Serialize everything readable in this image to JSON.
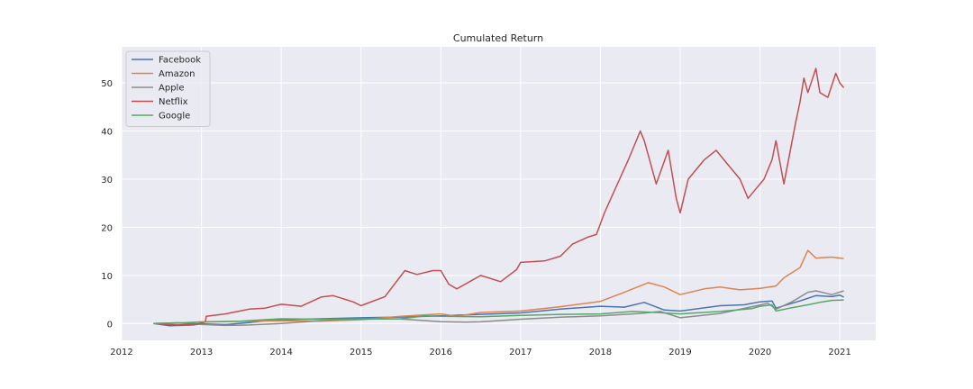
{
  "chart_data": {
    "type": "line",
    "title": "Cumulated Return",
    "xlabel": "",
    "ylabel": "",
    "xlim": [
      2012.0,
      2021.45
    ],
    "ylim": [
      -3.5,
      57.5
    ],
    "x_ticks": [
      "2012",
      "2013",
      "2014",
      "2015",
      "2016",
      "2017",
      "2018",
      "2019",
      "2020",
      "2021"
    ],
    "y_ticks": [
      "0",
      "10",
      "20",
      "30",
      "40",
      "50"
    ],
    "grid": true,
    "legend": "top-left",
    "series": [
      {
        "name": "Facebook",
        "color": "#4c72b0",
        "x": [
          2012.4,
          2012.6,
          2012.75,
          2012.9,
          2013.0,
          2013.3,
          2013.6,
          2013.8,
          2014.0,
          2014.5,
          2015.0,
          2015.5,
          2016.0,
          2016.5,
          2017.0,
          2017.5,
          2018.0,
          2018.3,
          2018.55,
          2018.8,
          2019.0,
          2019.5,
          2019.8,
          2020.0,
          2020.15,
          2020.2,
          2020.5,
          2020.7,
          2020.9,
          2021.0,
          2021.05
        ],
        "y": [
          0.0,
          -0.45,
          -0.4,
          -0.3,
          -0.05,
          -0.2,
          0.2,
          0.6,
          0.8,
          1.0,
          1.2,
          1.35,
          1.6,
          1.9,
          2.2,
          3.0,
          3.6,
          3.4,
          4.4,
          2.8,
          2.6,
          3.7,
          3.9,
          4.5,
          4.7,
          3.2,
          4.7,
          5.8,
          5.6,
          5.9,
          5.5
        ]
      },
      {
        "name": "Amazon",
        "color": "#dd8452",
        "x": [
          2012.4,
          2012.8,
          2013.0,
          2013.5,
          2014.0,
          2014.5,
          2015.0,
          2015.5,
          2016.0,
          2016.2,
          2016.5,
          2017.0,
          2017.5,
          2018.0,
          2018.3,
          2018.6,
          2018.8,
          2019.0,
          2019.3,
          2019.5,
          2019.75,
          2020.0,
          2020.2,
          2020.3,
          2020.5,
          2020.6,
          2020.7,
          2020.9,
          2021.05
        ],
        "y": [
          0.0,
          0.2,
          0.35,
          0.45,
          0.6,
          0.5,
          0.8,
          1.5,
          2.0,
          1.5,
          2.3,
          2.6,
          3.5,
          4.6,
          6.5,
          8.5,
          7.6,
          6.0,
          7.2,
          7.6,
          7.0,
          7.3,
          7.8,
          9.5,
          11.6,
          15.2,
          13.6,
          13.8,
          13.5
        ]
      },
      {
        "name": "Apple",
        "color": "#8c8c8c",
        "x": [
          2012.4,
          2012.7,
          2013.0,
          2013.3,
          2013.6,
          2014.0,
          2014.5,
          2015.0,
          2015.5,
          2016.0,
          2016.3,
          2016.5,
          2017.0,
          2017.5,
          2018.0,
          2018.5,
          2018.75,
          2019.0,
          2019.5,
          2019.9,
          2020.1,
          2020.2,
          2020.4,
          2020.6,
          2020.7,
          2020.9,
          2021.05
        ],
        "y": [
          0.0,
          0.15,
          -0.2,
          -0.4,
          -0.3,
          0.0,
          0.6,
          1.0,
          0.95,
          0.4,
          0.3,
          0.35,
          0.9,
          1.3,
          1.6,
          2.1,
          2.5,
          1.2,
          2.1,
          3.5,
          4.2,
          3.0,
          4.5,
          6.5,
          6.8,
          6.0,
          6.8
        ]
      },
      {
        "name": "Netflix",
        "color": "#c44e52",
        "x": [
          2012.4,
          2012.7,
          2012.95,
          2013.05,
          2013.06,
          2013.3,
          2013.6,
          2013.8,
          2014.0,
          2014.25,
          2014.5,
          2014.65,
          2014.9,
          2015.0,
          2015.3,
          2015.55,
          2015.7,
          2015.9,
          2016.0,
          2016.1,
          2016.2,
          2016.5,
          2016.75,
          2016.95,
          2017.0,
          2017.3,
          2017.5,
          2017.65,
          2017.85,
          2017.95,
          2018.05,
          2018.2,
          2018.35,
          2018.5,
          2018.55,
          2018.7,
          2018.85,
          2018.95,
          2019.0,
          2019.1,
          2019.3,
          2019.45,
          2019.55,
          2019.75,
          2019.85,
          2019.95,
          2020.05,
          2020.15,
          2020.2,
          2020.3,
          2020.45,
          2020.5,
          2020.55,
          2020.6,
          2020.7,
          2020.75,
          2020.85,
          2020.95,
          2021.0,
          2021.05
        ],
        "y": [
          0.0,
          -0.3,
          -0.1,
          0.3,
          1.5,
          2.0,
          3.0,
          3.2,
          4.0,
          3.6,
          5.5,
          5.8,
          4.5,
          3.7,
          5.6,
          11.0,
          10.2,
          11.0,
          11.0,
          8.2,
          7.2,
          10.0,
          8.7,
          11.2,
          12.7,
          13.0,
          14.0,
          16.5,
          18.0,
          18.5,
          23.0,
          28.5,
          34.0,
          40.0,
          38.0,
          29.0,
          36.0,
          26.0,
          23.0,
          30.0,
          34.0,
          36.0,
          34.0,
          30.0,
          26.0,
          28.0,
          30.0,
          34.0,
          38.0,
          29.0,
          42.0,
          46.0,
          51.0,
          48.0,
          53.0,
          48.0,
          47.0,
          52.0,
          50.0,
          49.0
        ]
      },
      {
        "name": "Google",
        "color": "#55a868",
        "x": [
          2012.4,
          2012.8,
          2013.0,
          2013.5,
          2013.8,
          2014.0,
          2014.5,
          2015.0,
          2015.5,
          2015.8,
          2016.0,
          2016.5,
          2017.0,
          2017.5,
          2018.0,
          2018.4,
          2018.7,
          2019.0,
          2019.5,
          2019.9,
          2020.0,
          2020.15,
          2020.2,
          2020.4,
          2020.6,
          2020.75,
          2020.9,
          2021.05
        ],
        "y": [
          0.0,
          0.1,
          0.3,
          0.5,
          0.8,
          1.0,
          0.9,
          0.9,
          1.0,
          1.6,
          1.5,
          1.4,
          1.7,
          1.9,
          2.0,
          2.5,
          2.3,
          2.0,
          2.5,
          3.1,
          3.6,
          3.9,
          2.6,
          3.3,
          3.9,
          4.4,
          4.8,
          4.9
        ]
      }
    ]
  }
}
